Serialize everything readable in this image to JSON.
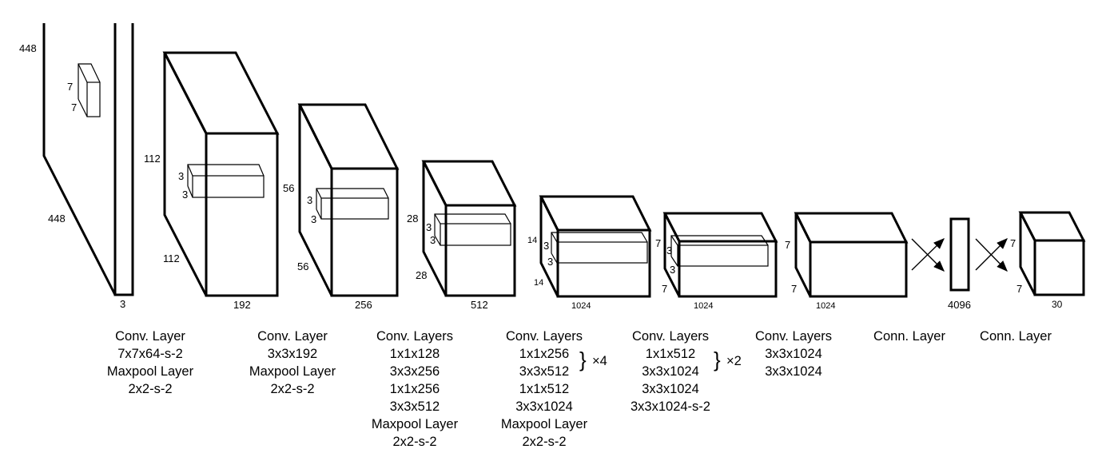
{
  "dims": {
    "input": {
      "h": "448",
      "w": "448",
      "d": "3",
      "k1": "7",
      "k2": "7"
    },
    "b2": {
      "h": "112",
      "w": "112",
      "d": "192",
      "k1": "3",
      "k2": "3"
    },
    "b3": {
      "h": "56",
      "w": "56",
      "d": "256",
      "k1": "3",
      "k2": "3"
    },
    "b4": {
      "h": "28",
      "w": "28",
      "d": "512",
      "k1": "3",
      "k2": "3"
    },
    "b5": {
      "h": "14",
      "w": "14",
      "d": "1024",
      "k1": "3",
      "k2": "3"
    },
    "b6": {
      "h": "7",
      "w": "7",
      "d": "1024",
      "k1": "3",
      "k2": "3"
    },
    "b7": {
      "h": "7",
      "w": "7",
      "d": "1024"
    },
    "fc": {
      "d": "4096"
    },
    "out": {
      "h": "7",
      "w": "7",
      "d": "30"
    }
  },
  "captions": [
    [
      "Conv. Layer",
      "7x7x64-s-2",
      "Maxpool Layer",
      "2x2-s-2"
    ],
    [
      "Conv. Layer",
      "3x3x192",
      "Maxpool Layer",
      "2x2-s-2"
    ],
    [
      "Conv. Layers",
      "1x1x128",
      "3x3x256",
      "1x1x256",
      "3x3x512",
      "Maxpool Layer",
      "2x2-s-2"
    ],
    [
      "Conv. Layers",
      "1x1x256",
      "3x3x512",
      "1x1x512",
      "3x3x1024",
      "Maxpool Layer",
      "2x2-s-2"
    ],
    [
      "Conv. Layers",
      "1x1x512",
      "3x3x1024",
      "3x3x1024",
      "3x3x1024-s-2"
    ],
    [
      "Conv. Layers",
      "3x3x1024",
      "3x3x1024"
    ],
    [
      "Conn. Layer"
    ],
    [
      "Conn. Layer"
    ]
  ],
  "repeats": [
    "×4",
    "×2"
  ]
}
